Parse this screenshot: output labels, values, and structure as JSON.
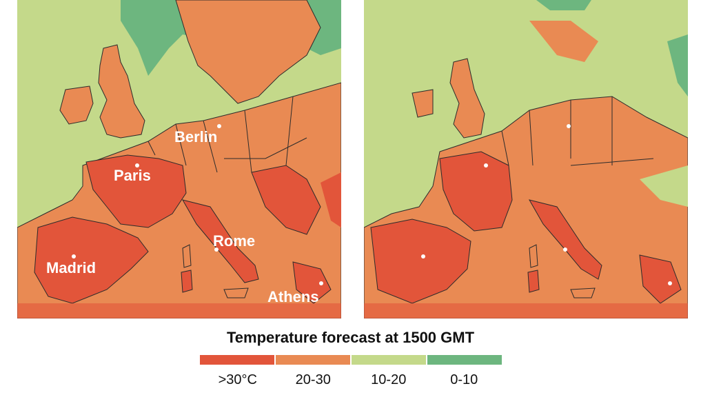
{
  "legend": {
    "title": "Temperature forecast at 1500 GMT",
    "bins": [
      {
        "label": ">30°C",
        "color": "#e2553a"
      },
      {
        "label": "20-30",
        "color": "#e98a53"
      },
      {
        "label": "10-20",
        "color": "#c4d98a"
      },
      {
        "label": "0-10",
        "color": "#6db67f"
      }
    ]
  },
  "maps": {
    "left": {
      "cities": {
        "berlin": "Berlin",
        "paris": "Paris",
        "rome": "Rome",
        "madrid": "Madrid",
        "athens": "Athens"
      }
    }
  },
  "colors": {
    "hot": "#e2553a",
    "warm": "#e98a53",
    "mild": "#c4d98a",
    "cool": "#6db67f",
    "border": "#2b2b2b"
  }
}
